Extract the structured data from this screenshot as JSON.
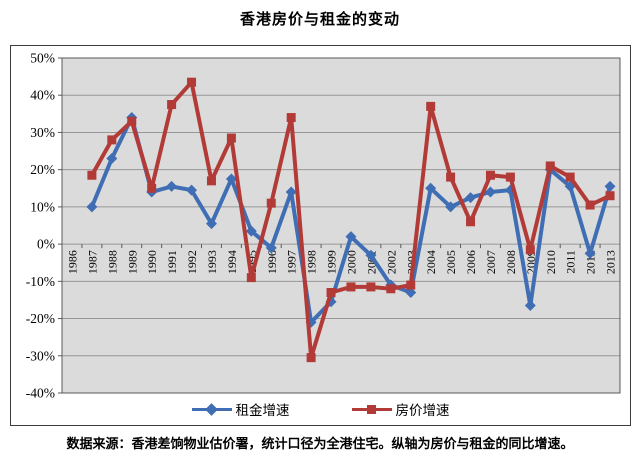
{
  "page_title": "香港房价与租金的变动",
  "footer": {
    "source_note": "数据来源：香港差饷物业估价署，统计口径为全港住宅。纵轴为房价与租金的同比增速。"
  },
  "chart_data": {
    "type": "line",
    "title": "香港房价与租金的变动",
    "categories": [
      "1986",
      "1987",
      "1988",
      "1989",
      "1990",
      "1991",
      "1992",
      "1993",
      "1994",
      "1995",
      "1996",
      "1997",
      "1998",
      "1999",
      "2000",
      "2001",
      "2002",
      "2003",
      "2004",
      "2005",
      "2006",
      "2007",
      "2008",
      "2009",
      "2010",
      "2011",
      "2012",
      "2013"
    ],
    "series": [
      {
        "id": "rent",
        "name": "租金增速",
        "color": "#3F6EB4",
        "marker": "diamond",
        "values": [
          null,
          10,
          23,
          34,
          14,
          15.5,
          14.5,
          5.5,
          17.5,
          3.5,
          -1,
          14,
          -21,
          -15.5,
          2,
          -3,
          -11,
          -13,
          15,
          10,
          12.5,
          14,
          14.5,
          -16.5,
          20,
          15.5,
          -2.5,
          15.5
        ]
      },
      {
        "id": "price",
        "name": "房价增速",
        "color": "#B23B38",
        "marker": "square",
        "values": [
          null,
          18.5,
          28,
          33,
          15,
          37.5,
          43.5,
          17,
          28.5,
          -9,
          11,
          34,
          -30.5,
          -13,
          -11.5,
          -11.5,
          -12,
          -11,
          37,
          18,
          6,
          18.5,
          18,
          -1.5,
          21,
          18,
          10.5,
          13
        ]
      }
    ],
    "ylim": [
      -40,
      50
    ],
    "y_tick_step": 10,
    "y_tick_labels": [
      "50%",
      "40%",
      "30%",
      "20%",
      "10%",
      "0%",
      "-10%",
      "-20%",
      "-30%",
      "-40%"
    ],
    "grid": true,
    "legend_position": "bottom",
    "plot_bg": "#DBDBDB",
    "grid_color": "#979797",
    "axis_color": "#5A5A5A"
  }
}
